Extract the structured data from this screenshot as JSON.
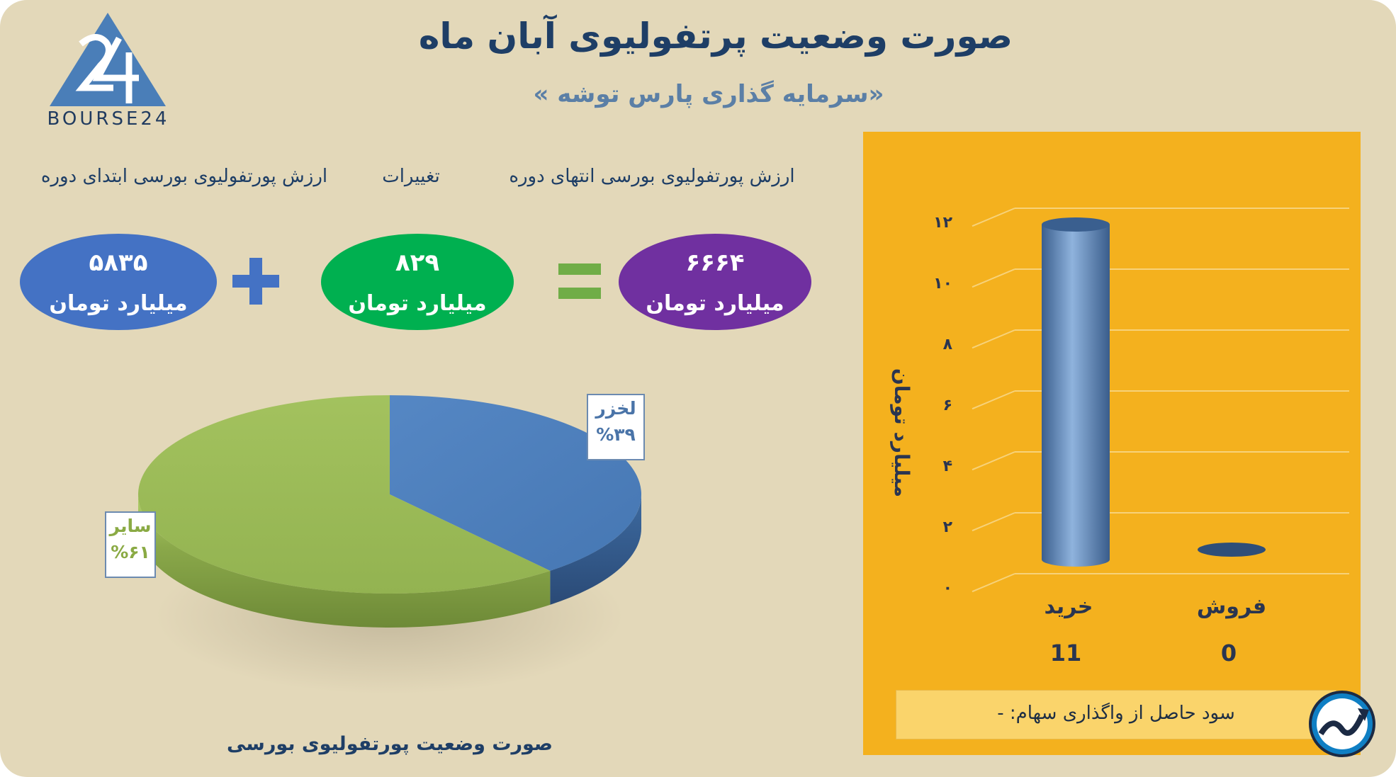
{
  "header": {
    "title": "صورت وضعیت پرتفولیوی آبان ماه",
    "subtitle": "«سرمایه گذاری پارس توشه »",
    "brand": "BOURSE24"
  },
  "equation": {
    "start_label": "ارزش پورتفولیوی بورسی ابتدای دوره",
    "change_label": "تغییرات",
    "end_label": "ارزش پورتفولیوی بورسی انتهای دوره",
    "start_value": "۵۸۳۵",
    "change_value": "۸۲۹",
    "end_value": "۶۶۶۴",
    "unit": "میلیارد تومان",
    "plus": "+",
    "equals": "="
  },
  "profit_text": "سود حاصل از واگذاری سهام: -",
  "colors": {
    "start_oval": "#4472c4",
    "change_oval": "#00b050",
    "end_oval": "#7030a0",
    "pie_blue": "#4f81bd",
    "pie_green": "#9bbb59",
    "bar_panel": "#f4b11e",
    "operator": "#4472c4",
    "equals": "#70ad47"
  },
  "chart_data": [
    {
      "type": "pie",
      "title": "صورت وضعیت پورتفولیوی بورسی",
      "slices": [
        {
          "name": "لخزر",
          "value": 39,
          "label": "%۳۹"
        },
        {
          "name": "سایر",
          "value": 61,
          "label": "%۶۱"
        }
      ]
    },
    {
      "type": "bar",
      "categories": [
        "خرید",
        "فروش"
      ],
      "values": [
        11,
        0
      ],
      "value_labels": [
        "11",
        "0"
      ],
      "ylabel": "میلیارد تومان",
      "ylim": [
        0,
        12
      ],
      "yticks": [
        "۰",
        "۲",
        "۴",
        "۶",
        "۸",
        "۱۰",
        "۱۲"
      ],
      "grid": true
    }
  ]
}
